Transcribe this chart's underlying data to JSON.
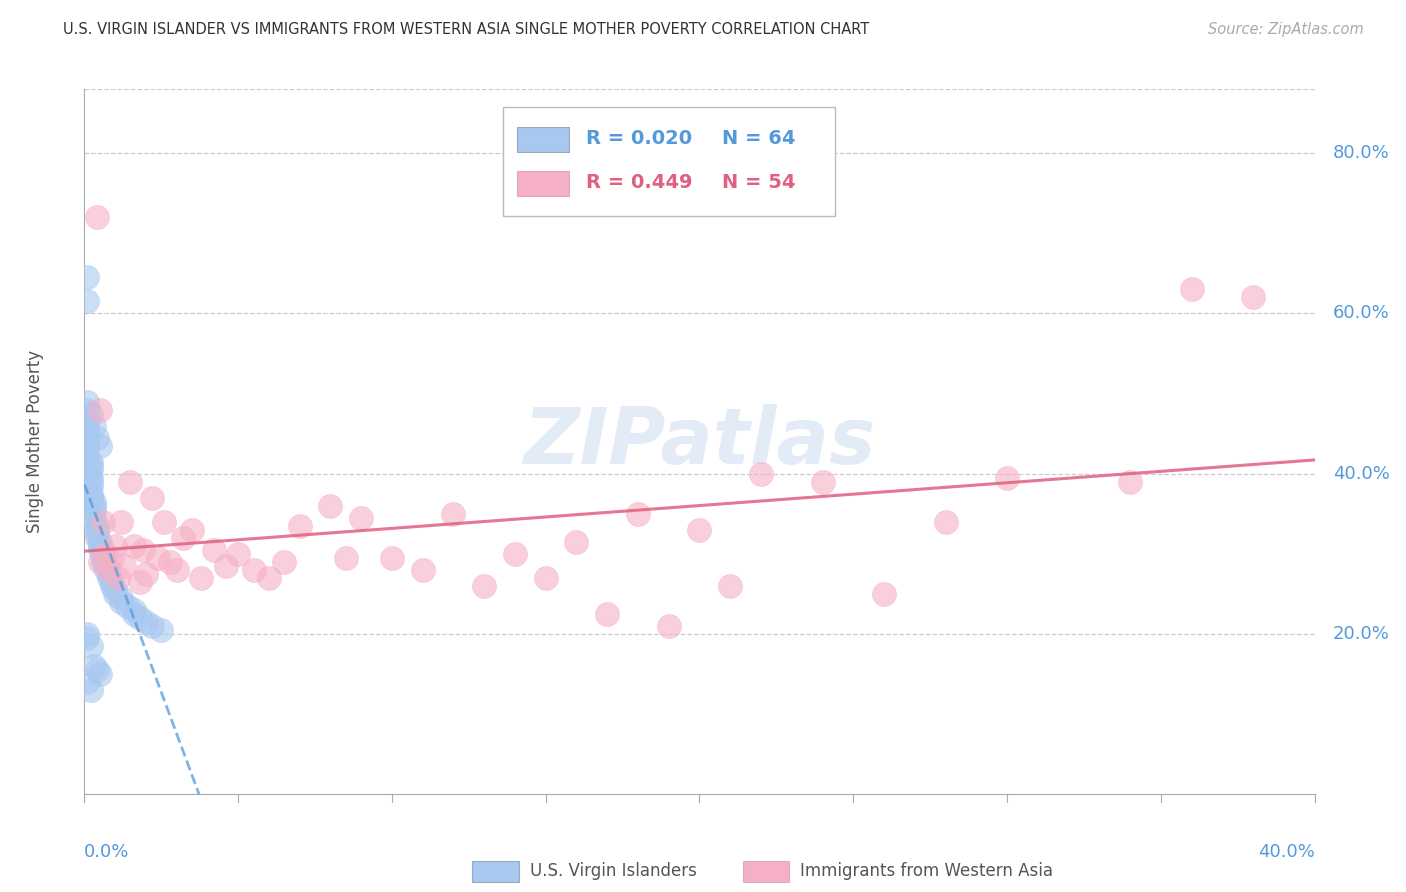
{
  "title": "U.S. VIRGIN ISLANDER VS IMMIGRANTS FROM WESTERN ASIA SINGLE MOTHER POVERTY CORRELATION CHART",
  "source": "Source: ZipAtlas.com",
  "ylabel": "Single Mother Poverty",
  "right_ytick_labels": [
    "20.0%",
    "40.0%",
    "60.0%",
    "80.0%"
  ],
  "right_ytick_vals": [
    0.2,
    0.4,
    0.6,
    0.8
  ],
  "xlim": [
    0.0,
    0.4
  ],
  "ylim": [
    0.0,
    0.88
  ],
  "blue_color": "#a8c8f0",
  "pink_color": "#f5b0c5",
  "blue_line_color": "#5599dd",
  "pink_line_color": "#e06080",
  "axis_label_color": "#5599dd",
  "grid_color": "#cccccc",
  "legend_r1": "R = 0.020",
  "legend_n1": "N = 64",
  "legend_r2": "R = 0.449",
  "legend_n2": "N = 54",
  "watermark": "ZIPatlas",
  "bottom_label1": "U.S. Virgin Islanders",
  "bottom_label2": "Immigrants from Western Asia",
  "blue_x": [
    0.001,
    0.001,
    0.001,
    0.001,
    0.001,
    0.001,
    0.001,
    0.001,
    0.001,
    0.001,
    0.002,
    0.002,
    0.002,
    0.002,
    0.002,
    0.002,
    0.002,
    0.002,
    0.003,
    0.003,
    0.003,
    0.003,
    0.003,
    0.004,
    0.004,
    0.004,
    0.004,
    0.005,
    0.005,
    0.005,
    0.006,
    0.006,
    0.006,
    0.007,
    0.007,
    0.008,
    0.008,
    0.009,
    0.009,
    0.01,
    0.01,
    0.012,
    0.012,
    0.014,
    0.016,
    0.016,
    0.018,
    0.02,
    0.022,
    0.025,
    0.001,
    0.001,
    0.001,
    0.002,
    0.002,
    0.003,
    0.004,
    0.005,
    0.001,
    0.001,
    0.002,
    0.003,
    0.004,
    0.005
  ],
  "blue_y": [
    0.645,
    0.615,
    0.47,
    0.465,
    0.455,
    0.45,
    0.44,
    0.435,
    0.43,
    0.42,
    0.415,
    0.41,
    0.405,
    0.395,
    0.39,
    0.385,
    0.375,
    0.37,
    0.365,
    0.36,
    0.355,
    0.345,
    0.34,
    0.335,
    0.33,
    0.325,
    0.32,
    0.315,
    0.31,
    0.305,
    0.3,
    0.295,
    0.29,
    0.285,
    0.28,
    0.275,
    0.27,
    0.265,
    0.26,
    0.255,
    0.25,
    0.245,
    0.24,
    0.235,
    0.23,
    0.225,
    0.22,
    0.215,
    0.21,
    0.205,
    0.2,
    0.195,
    0.14,
    0.185,
    0.13,
    0.16,
    0.155,
    0.15,
    0.49,
    0.48,
    0.475,
    0.46,
    0.445,
    0.435
  ],
  "pink_x": [
    0.004,
    0.005,
    0.005,
    0.006,
    0.007,
    0.008,
    0.009,
    0.01,
    0.011,
    0.012,
    0.013,
    0.015,
    0.016,
    0.018,
    0.019,
    0.02,
    0.022,
    0.024,
    0.026,
    0.028,
    0.03,
    0.032,
    0.035,
    0.038,
    0.042,
    0.046,
    0.05,
    0.055,
    0.06,
    0.065,
    0.07,
    0.08,
    0.085,
    0.09,
    0.1,
    0.11,
    0.12,
    0.13,
    0.14,
    0.15,
    0.16,
    0.17,
    0.18,
    0.19,
    0.2,
    0.21,
    0.22,
    0.24,
    0.26,
    0.28,
    0.3,
    0.34,
    0.36,
    0.38
  ],
  "pink_y": [
    0.72,
    0.48,
    0.29,
    0.34,
    0.3,
    0.28,
    0.295,
    0.31,
    0.27,
    0.34,
    0.285,
    0.39,
    0.31,
    0.265,
    0.305,
    0.275,
    0.37,
    0.295,
    0.34,
    0.29,
    0.28,
    0.32,
    0.33,
    0.27,
    0.305,
    0.285,
    0.3,
    0.28,
    0.27,
    0.29,
    0.335,
    0.36,
    0.295,
    0.345,
    0.295,
    0.28,
    0.35,
    0.26,
    0.3,
    0.27,
    0.315,
    0.225,
    0.35,
    0.21,
    0.33,
    0.26,
    0.4,
    0.39,
    0.25,
    0.34,
    0.395,
    0.39,
    0.63,
    0.62
  ]
}
